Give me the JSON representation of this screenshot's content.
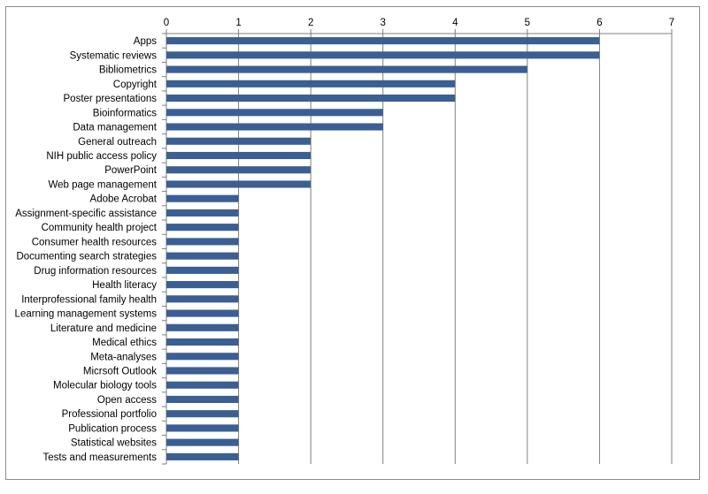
{
  "chart_data": {
    "type": "bar",
    "orientation": "horizontal",
    "categories": [
      "Apps",
      "Systematic reviews",
      "Bibliometrics",
      "Copyright",
      "Poster presentations",
      "Bioinformatics",
      "Data management",
      "General outreach",
      "NIH public access policy",
      "PowerPoint",
      "Web page management",
      "Adobe Acrobat",
      "Assignment-specific assistance",
      "Community health project",
      "Consumer health resources",
      "Documenting search strategies",
      "Drug information resources",
      "Health literacy",
      "Interprofessional family health",
      "Learning management systems",
      "Literature and medicine",
      "Medical ethics",
      "Meta-analyses",
      "Micrsoft Outlook",
      "Molecular biology tools",
      "Open access",
      "Professional portfolio",
      "Publication process",
      "Statistical websites",
      "Tests and measurements"
    ],
    "values": [
      6,
      6,
      5,
      4,
      4,
      3,
      3,
      2,
      2,
      2,
      2,
      1,
      1,
      1,
      1,
      1,
      1,
      1,
      1,
      1,
      1,
      1,
      1,
      1,
      1,
      1,
      1,
      1,
      1,
      1
    ],
    "xlim": [
      0,
      7
    ],
    "x_ticks": [
      "0",
      "1",
      "2",
      "3",
      "4",
      "5",
      "6",
      "7"
    ],
    "x_axis_position": "top",
    "grid": "vertical major gridlines",
    "bar_color": "#3b5f93",
    "title": "",
    "xlabel": "",
    "ylabel": ""
  }
}
